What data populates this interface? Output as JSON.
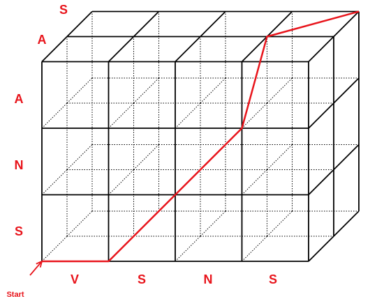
{
  "diagram": {
    "grid": {
      "columns": 4,
      "rows": 3,
      "layers": 2
    },
    "labels": {
      "top_back": "S",
      "top_front": "A",
      "left": [
        "A",
        "N",
        "S"
      ],
      "bottom": [
        "V",
        "S",
        "N",
        "S"
      ],
      "start": "Start"
    },
    "colors": {
      "grid": "#000000",
      "path": "#e8141b",
      "labels": "#e8141b"
    }
  }
}
